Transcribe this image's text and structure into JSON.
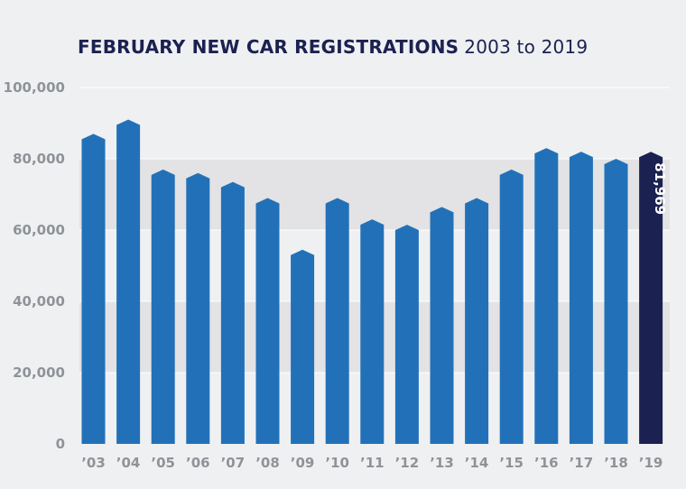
{
  "chart_data": {
    "type": "bar",
    "title": "FEBRUARY NEW CAR REGISTRATIONS",
    "subtitle": "2003 to 2019",
    "xlabel": "",
    "ylabel": "",
    "ylim": [
      0,
      100000
    ],
    "yticks": [
      "0",
      "20,000",
      "40,000",
      "60,000",
      "80,000",
      "100,000"
    ],
    "ytick_values": [
      0,
      20000,
      40000,
      60000,
      80000,
      100000
    ],
    "categories": [
      "’03",
      "’04",
      "’05",
      "’06",
      "’07",
      "’08",
      "’09",
      "’10",
      "’11",
      "’12",
      "’13",
      "’14",
      "’15",
      "’16",
      "’17",
      "’18",
      "’19"
    ],
    "values": [
      87000,
      91000,
      77000,
      76000,
      73500,
      69000,
      54500,
      69000,
      63000,
      61500,
      66500,
      69000,
      77000,
      83000,
      82000,
      80000,
      81969
    ],
    "highlight_index": 16,
    "highlight_label": "81,969",
    "grid": true,
    "bar_color": "#2271b8",
    "highlight_color": "#1b2150",
    "band_color": "#e3e2e4",
    "gridline_color": "#ffffff",
    "background": "#eff0f2"
  }
}
